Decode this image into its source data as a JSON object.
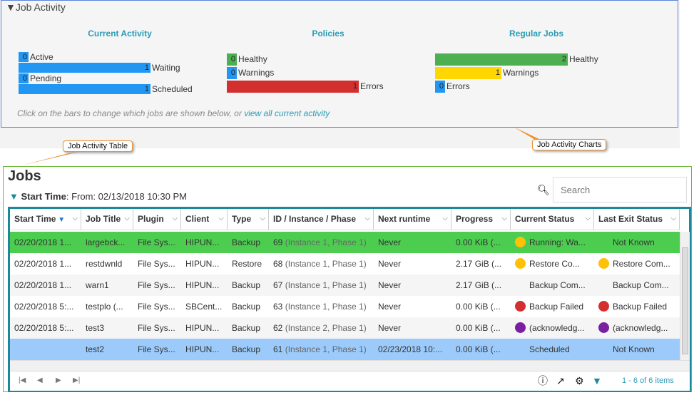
{
  "activity": {
    "title": "Job Activity",
    "current": {
      "heading": "Current Activity",
      "items": [
        {
          "value": "0",
          "label": "Active",
          "fraction": 0
        },
        {
          "value": "1",
          "label": "Waiting",
          "fraction": 1
        },
        {
          "value": "0",
          "label": "Pending",
          "fraction": 0
        },
        {
          "value": "1",
          "label": "Scheduled",
          "fraction": 1
        }
      ]
    },
    "policies": {
      "heading": "Policies",
      "items": [
        {
          "value": "0",
          "label": "Healthy",
          "fraction": 0,
          "color": "#4caf50"
        },
        {
          "value": "0",
          "label": "Warnings",
          "fraction": 0,
          "color": "#2196f3"
        },
        {
          "value": "1",
          "label": "Errors",
          "fraction": 1,
          "color": "#d32f2f"
        }
      ]
    },
    "regular": {
      "heading": "Regular Jobs",
      "items": [
        {
          "value": "2",
          "label": "Healthy",
          "fraction": 1,
          "color": "#4caf50"
        },
        {
          "value": "1",
          "label": "Warnings",
          "fraction": 0.5,
          "color": "#ffd600"
        },
        {
          "value": "0",
          "label": "Errors",
          "fraction": 0,
          "color": "#2196f3"
        }
      ]
    },
    "hint": "Click on the bars to change which jobs are shown below, or ",
    "hint_link": "view all current activity",
    "bar_color": "#2196f3"
  },
  "callouts": {
    "table": "Job Activity Table",
    "charts": "Job Activity Charts"
  },
  "jobs": {
    "title": "Jobs",
    "filter_label": "Start Time",
    "filter_value": ": From: 02/13/2018 10:30 PM",
    "search_placeholder": "Search",
    "columns": [
      "Start Time",
      "Job Title",
      "Plugin",
      "Client",
      "Type",
      "ID / Instance / Phase",
      "Next runtime",
      "Progress",
      "Current Status",
      "Last Exit Status"
    ],
    "rows": [
      {
        "start": "02/20/2018 1...",
        "title": "largebck...",
        "plugin": "File Sys...",
        "client": "HIPUN...",
        "type": "Backup",
        "id": "69",
        "inst": "(Instance 1, Phase 1)",
        "next": "Never",
        "progress": "0.00 KiB (...",
        "cur": "Running: Wa...",
        "cur_dot": "#ffc107",
        "last": "Not Known",
        "last_dot": "",
        "bg": "#4ccd50"
      },
      {
        "start": "02/20/2018 1...",
        "title": "restdwnld",
        "plugin": "File Sys...",
        "client": "HIPUN...",
        "type": "Restore",
        "id": "68",
        "inst": "(Instance 1, Phase 1)",
        "next": "Never",
        "progress": "2.17 GiB (...",
        "cur": "Restore Co...",
        "cur_dot": "#ffc107",
        "last": "Restore Com...",
        "last_dot": "#ffc107",
        "bg": "#ffffff"
      },
      {
        "start": "02/20/2018 1...",
        "title": "warn1",
        "plugin": "File Sys...",
        "client": "HIPUN...",
        "type": "Backup",
        "id": "67",
        "inst": "(Instance 1, Phase 1)",
        "next": "Never",
        "progress": "2.17 GiB (...",
        "cur": "Backup Com...",
        "cur_dot": "",
        "last": "Backup Com...",
        "last_dot": "",
        "bg": "#f5f5f5"
      },
      {
        "start": "02/20/2018 5:...",
        "title": "testplo (...",
        "plugin": "File Sys...",
        "client": "SBCent...",
        "type": "Backup",
        "id": "63",
        "inst": "(Instance 1, Phase 1)",
        "next": "Never",
        "progress": "0.00 KiB (...",
        "cur": "Backup Failed",
        "cur_dot": "#d32f2f",
        "last": "Backup Failed",
        "last_dot": "#d32f2f",
        "bg": "#ffffff"
      },
      {
        "start": "02/20/2018 5:...",
        "title": "test3",
        "plugin": "File Sys...",
        "client": "HIPUN...",
        "type": "Backup",
        "id": "62",
        "inst": "(Instance 2, Phase 1)",
        "next": "Never",
        "progress": "0.00 KiB (...",
        "cur": "(acknowledg...",
        "cur_dot": "#7b1fa2",
        "last": "(acknowledg...",
        "last_dot": "#7b1fa2",
        "bg": "#f5f5f5"
      },
      {
        "start": "",
        "title": "test2",
        "plugin": "File Sys...",
        "client": "HIPUN...",
        "type": "Backup",
        "id": "61",
        "inst": "(Instance 1, Phase 1)",
        "next": "02/23/2018 10:...",
        "progress": "0.00 KiB (...",
        "cur": "Scheduled",
        "cur_dot": "",
        "last": "Not Known",
        "last_dot": "",
        "bg": "#9ccbfb"
      }
    ],
    "pager": "1 - 6 of 6 items"
  }
}
